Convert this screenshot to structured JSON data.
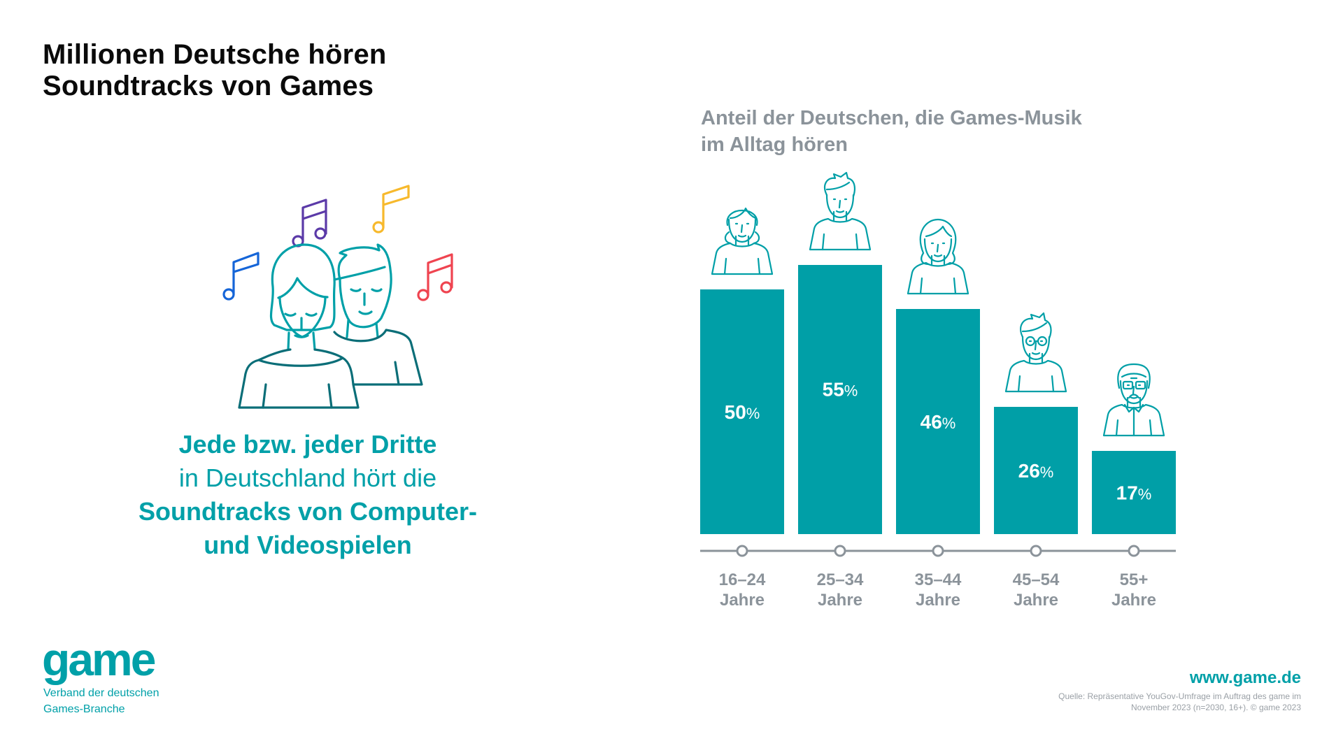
{
  "title": {
    "line1": "Millionen Deutsche hören",
    "line2": "Soundtracks von Games"
  },
  "claim": {
    "line1": "Jede bzw. jeder Dritte",
    "line2": "in Deutschland hört die",
    "line3": "Soundtracks von Computer-",
    "line4": "und Videospielen"
  },
  "illustration": {
    "icons": [
      "music-note-blue-icon",
      "music-note-purple-icon",
      "music-note-yellow-icon",
      "music-note-red-icon",
      "woman-listening-icon",
      "man-listening-icon"
    ],
    "note_colors": [
      "#1565d8",
      "#5b3aa8",
      "#f7b92c",
      "#ef4450"
    ]
  },
  "chart_data": {
    "type": "bar",
    "title": "Anteil der Deutschen, die Games-Musik im Alltag hören",
    "title_lines": [
      "Anteil der Deutschen, die Games-Musik",
      "im Alltag hören"
    ],
    "categories": [
      "16–24 Jahre",
      "25–34 Jahre",
      "35–44 Jahre",
      "45–54 Jahre",
      "55+ Jahre"
    ],
    "category_lines": [
      [
        "16–24",
        "Jahre"
      ],
      [
        "25–34",
        "Jahre"
      ],
      [
        "35–44",
        "Jahre"
      ],
      [
        "45–54",
        "Jahre"
      ],
      [
        "55+",
        "Jahre"
      ]
    ],
    "values": [
      50,
      55,
      46,
      26,
      17
    ],
    "value_labels": [
      "50",
      "55",
      "46",
      "26",
      "17"
    ],
    "unit": "%",
    "person_icons": [
      "girl-icon",
      "young-man-icon",
      "woman-icon",
      "man-glasses-icon",
      "senior-man-icon"
    ],
    "xlabel": "",
    "ylabel": "",
    "ylim": [
      0,
      55
    ],
    "grid": false,
    "bar_color": "#009fa7",
    "axis_color": "#8b939a"
  },
  "footer": {
    "logo_text": "game",
    "tagline_line1": "Verband der deutschen",
    "tagline_line2": "Games-Branche",
    "url": "www.game.de",
    "source_line1": "Quelle: Repräsentative YouGov-Umfrage im Auftrag des game im",
    "source_line2": "November 2023 (n=2030, 16+). © game 2023"
  },
  "colors": {
    "brand": "#00a0a8",
    "title": "#0a0a0a",
    "grey": "#8b939a"
  }
}
